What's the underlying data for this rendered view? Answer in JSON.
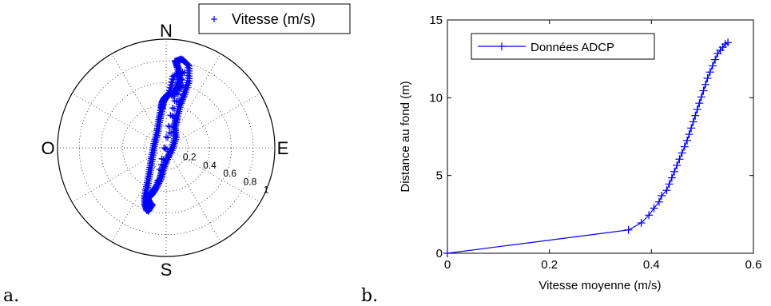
{
  "panel_labels": {
    "a": "a.",
    "b": "b."
  },
  "colors": {
    "series": "#0000ff",
    "axis": "#000000",
    "grid": "#000000"
  },
  "chart_data": [
    {
      "type": "scatter",
      "subtype": "polar",
      "legend": {
        "label": "Vitesse (m/s)",
        "marker": "+",
        "placement": "top-right"
      },
      "directions": {
        "north": "N",
        "south": "S",
        "east": "E",
        "west": "O"
      },
      "radial_ticks": [
        {
          "value": 0.2,
          "label": "0.2"
        },
        {
          "value": 0.4,
          "label": "0.4"
        },
        {
          "value": 0.6,
          "label": "0.6"
        },
        {
          "value": 0.8,
          "label": "0.8"
        },
        {
          "value": 1.0,
          "label": "1"
        }
      ],
      "rmax": 1.0,
      "grid": true,
      "points": [
        [
          0.05,
          0.48
        ],
        [
          0.09,
          0.56
        ],
        [
          0.12,
          0.64
        ],
        [
          0.1,
          0.74
        ],
        [
          0.08,
          0.8
        ],
        [
          0.14,
          0.82
        ],
        [
          0.2,
          0.76
        ],
        [
          0.2,
          0.62
        ],
        [
          0.16,
          0.5
        ],
        [
          0.12,
          0.4
        ],
        [
          0.09,
          0.28
        ],
        [
          0.07,
          0.2
        ],
        [
          0.08,
          0.1
        ],
        [
          0.05,
          0.0
        ],
        [
          0.0,
          -0.1
        ],
        [
          -0.04,
          -0.2
        ],
        [
          -0.06,
          -0.28
        ],
        [
          -0.1,
          -0.36
        ],
        [
          -0.14,
          -0.42
        ],
        [
          -0.18,
          -0.46
        ],
        [
          -0.16,
          -0.5
        ],
        [
          -0.14,
          -0.52
        ],
        [
          -0.18,
          -0.58
        ],
        [
          -0.2,
          -0.52
        ],
        [
          -0.2,
          -0.44
        ],
        [
          -0.18,
          -0.34
        ],
        [
          -0.16,
          -0.22
        ],
        [
          -0.14,
          -0.1
        ],
        [
          -0.12,
          0.02
        ],
        [
          -0.09,
          0.14
        ],
        [
          -0.07,
          0.26
        ],
        [
          -0.05,
          0.36
        ],
        [
          -0.04,
          0.42
        ],
        [
          -0.02,
          0.46
        ],
        [
          0.02,
          0.5
        ],
        [
          0.06,
          0.66
        ],
        [
          0.15,
          0.7
        ],
        [
          0.04,
          0.3
        ],
        [
          -0.08,
          -0.3
        ],
        [
          0.14,
          0.58
        ]
      ]
    },
    {
      "type": "line",
      "xlabel": "Vitesse moyenne (m/s)",
      "ylabel": "Distance au fond (m)",
      "xlim": [
        0,
        0.6
      ],
      "ylim": [
        0,
        15
      ],
      "xticks": [
        0,
        0.2,
        0.4,
        0.6
      ],
      "xtick_labels": [
        "0",
        "0.2",
        "0.4",
        "0.6"
      ],
      "yticks": [
        0,
        5,
        10,
        15
      ],
      "ytick_labels": [
        "0",
        "5",
        "10",
        "15"
      ],
      "grid": false,
      "legend": {
        "label": "Données ADCP",
        "marker": "+",
        "placement": "top-left"
      },
      "series": [
        {
          "name": "Données ADCP",
          "x": [
            0,
            0.355,
            0.38,
            0.395,
            0.405,
            0.415,
            0.42,
            0.43,
            0.435,
            0.44,
            0.445,
            0.45,
            0.455,
            0.46,
            0.465,
            0.47,
            0.474,
            0.478,
            0.482,
            0.486,
            0.49,
            0.494,
            0.498,
            0.502,
            0.506,
            0.51,
            0.515,
            0.52,
            0.525,
            0.53,
            0.535,
            0.54,
            0.545,
            0.55
          ],
          "y": [
            0,
            1.5,
            1.95,
            2.45,
            2.9,
            3.3,
            3.7,
            4.05,
            4.45,
            4.85,
            5.25,
            5.65,
            6.05,
            6.45,
            6.85,
            7.25,
            7.65,
            8.05,
            8.45,
            8.85,
            9.25,
            9.65,
            10.05,
            10.45,
            10.85,
            11.25,
            11.65,
            12.05,
            12.45,
            12.85,
            13.05,
            13.25,
            13.45,
            13.55
          ]
        }
      ]
    }
  ]
}
